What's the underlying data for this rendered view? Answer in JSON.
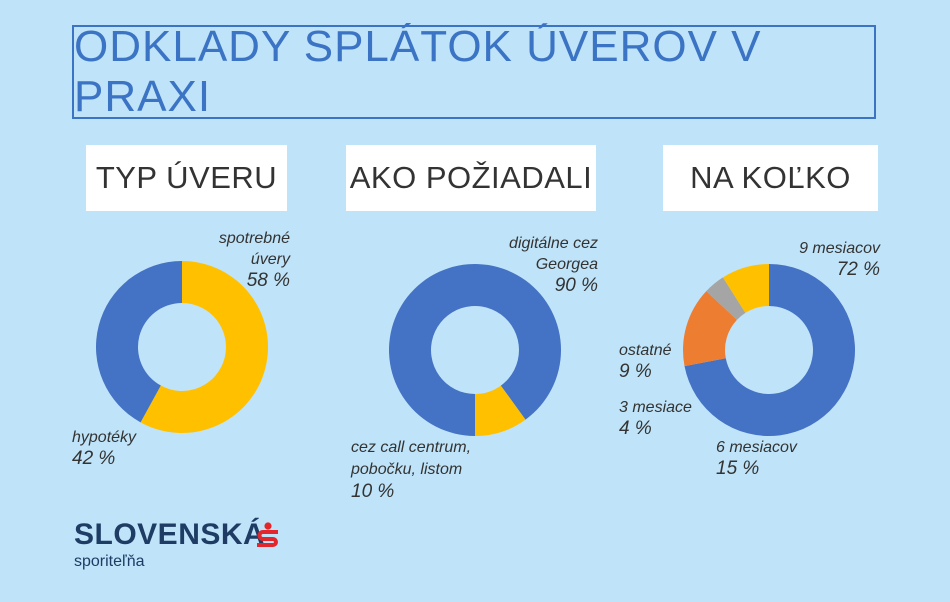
{
  "title": "ODKLADY SPLÁTOK ÚVEROV V PRAXI",
  "colors": {
    "blue": "#4472c4",
    "yellow": "#ffc000",
    "orange": "#ed7d31",
    "gray": "#a5a5a5",
    "text_blue": "#3b74c4",
    "background": "#bfe3f8"
  },
  "brand": {
    "name": "SLOVENSKÁ",
    "sub": "sporiteľňa",
    "logo_icon": "s-logo-icon"
  },
  "chart_data": [
    {
      "type": "pie",
      "variant": "donut",
      "title": "TYP ÚVERU",
      "series": [
        {
          "label": "spotrebné úvery",
          "label_lines": [
            "spotrebné",
            "úvery"
          ],
          "value": 58,
          "display": "58 %",
          "color": "#ffc000"
        },
        {
          "label": "hypotéky",
          "label_lines": [
            "hypotéky"
          ],
          "value": 42,
          "display": "42 %",
          "color": "#4472c4"
        }
      ]
    },
    {
      "type": "pie",
      "variant": "donut",
      "title": "AKO POŽIADALI",
      "series": [
        {
          "label": "digitálne cez Georgea",
          "label_lines": [
            "digitálne cez",
            "Georgea"
          ],
          "value": 90,
          "display": "90 %",
          "color": "#4472c4"
        },
        {
          "label": "cez call centrum, pobočku, listom",
          "label_lines": [
            "cez call centrum,",
            "pobočku, listom"
          ],
          "value": 10,
          "display": "10 %",
          "color": "#ffc000"
        }
      ]
    },
    {
      "type": "pie",
      "variant": "donut",
      "title": "NA KOĽKO",
      "series": [
        {
          "label": "9 mesiacov",
          "label_lines": [
            "9 mesiacov"
          ],
          "value": 72,
          "display": "72 %",
          "color": "#4472c4"
        },
        {
          "label": "6 mesiacov",
          "label_lines": [
            "6 mesiacov"
          ],
          "value": 15,
          "display": "15 %",
          "color": "#ed7d31"
        },
        {
          "label": "3 mesiace",
          "label_lines": [
            "3 mesiace"
          ],
          "value": 4,
          "display": "4 %",
          "color": "#a5a5a5"
        },
        {
          "label": "ostatné",
          "label_lines": [
            "ostatné"
          ],
          "value": 9,
          "display": "9 %",
          "color": "#ffc000"
        }
      ]
    }
  ]
}
